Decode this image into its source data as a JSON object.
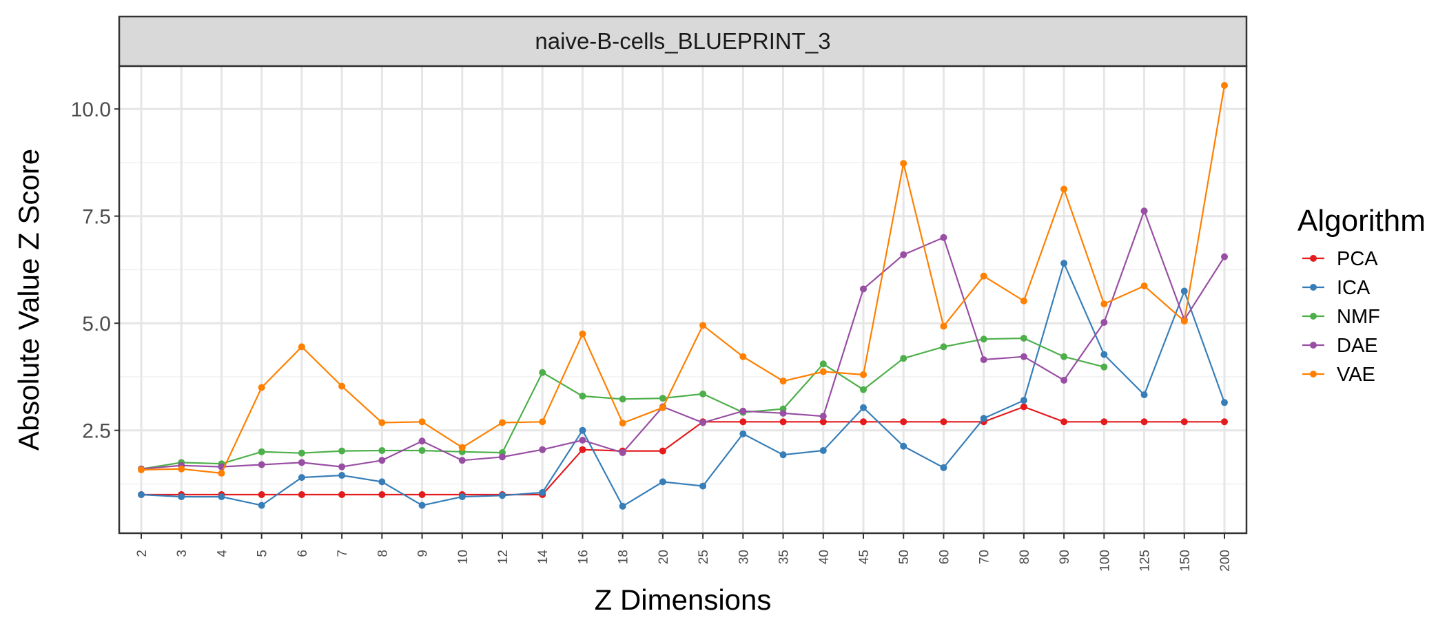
{
  "chart_data": {
    "type": "line",
    "title": "naive-B-cells_BLUEPRINT_3",
    "xlabel": "Z Dimensions",
    "ylabel": "Absolute Value Z Score",
    "x": [
      "2",
      "3",
      "4",
      "5",
      "6",
      "7",
      "8",
      "9",
      "10",
      "12",
      "14",
      "16",
      "18",
      "20",
      "25",
      "30",
      "35",
      "40",
      "45",
      "50",
      "60",
      "70",
      "80",
      "90",
      "100",
      "125",
      "150",
      "200"
    ],
    "ylim": [
      0.1,
      11.0
    ],
    "yticks": [
      2.5,
      5.0,
      7.5,
      10.0
    ],
    "ytick_labels": [
      "2.5",
      "5.0",
      "7.5",
      "10.0"
    ],
    "grid": true,
    "legend_title": "Algorithm",
    "legend_position": "right",
    "series": [
      {
        "name": "PCA",
        "color": "#e41a1c",
        "values": [
          1.0,
          1.0,
          1.0,
          1.0,
          1.0,
          1.0,
          1.0,
          1.0,
          1.0,
          1.0,
          1.0,
          2.05,
          2.02,
          2.02,
          2.7,
          2.7,
          2.7,
          2.7,
          2.7,
          2.7,
          2.7,
          2.7,
          3.05,
          2.7,
          2.7,
          2.7,
          2.7,
          2.7
        ]
      },
      {
        "name": "ICA",
        "color": "#377eb8",
        "values": [
          1.0,
          0.95,
          0.95,
          0.75,
          1.4,
          1.45,
          1.3,
          0.75,
          0.95,
          0.98,
          1.05,
          2.5,
          0.73,
          1.3,
          1.2,
          2.42,
          1.93,
          2.03,
          3.03,
          2.13,
          1.63,
          2.78,
          3.2,
          6.4,
          4.27,
          3.33,
          5.75,
          3.15
        ]
      },
      {
        "name": "NMF",
        "color": "#4daf4a",
        "values": [
          1.6,
          1.75,
          1.72,
          2.0,
          1.97,
          2.02,
          2.03,
          2.03,
          2.0,
          1.98,
          3.85,
          3.3,
          3.23,
          3.25,
          3.35,
          2.92,
          3.0,
          4.05,
          3.45,
          4.18,
          4.45,
          4.63,
          4.65,
          4.22,
          3.98,
          null,
          null,
          null
        ]
      },
      {
        "name": "DAE",
        "color": "#984ea3",
        "values": [
          1.6,
          1.68,
          1.65,
          1.7,
          1.75,
          1.65,
          1.8,
          2.25,
          1.8,
          1.88,
          2.05,
          2.27,
          1.98,
          3.05,
          2.68,
          2.95,
          2.9,
          2.83,
          5.8,
          6.6,
          7.0,
          4.15,
          4.22,
          3.67,
          5.02,
          7.62,
          5.08,
          6.55
        ]
      },
      {
        "name": "VAE",
        "color": "#ff7f00",
        "values": [
          1.58,
          1.6,
          1.5,
          3.5,
          4.45,
          3.53,
          2.68,
          2.7,
          2.1,
          2.68,
          2.7,
          4.75,
          2.67,
          3.03,
          4.95,
          4.22,
          3.65,
          3.87,
          3.8,
          8.73,
          4.93,
          6.1,
          5.52,
          8.13,
          5.45,
          5.87,
          5.05,
          10.55
        ]
      }
    ]
  }
}
